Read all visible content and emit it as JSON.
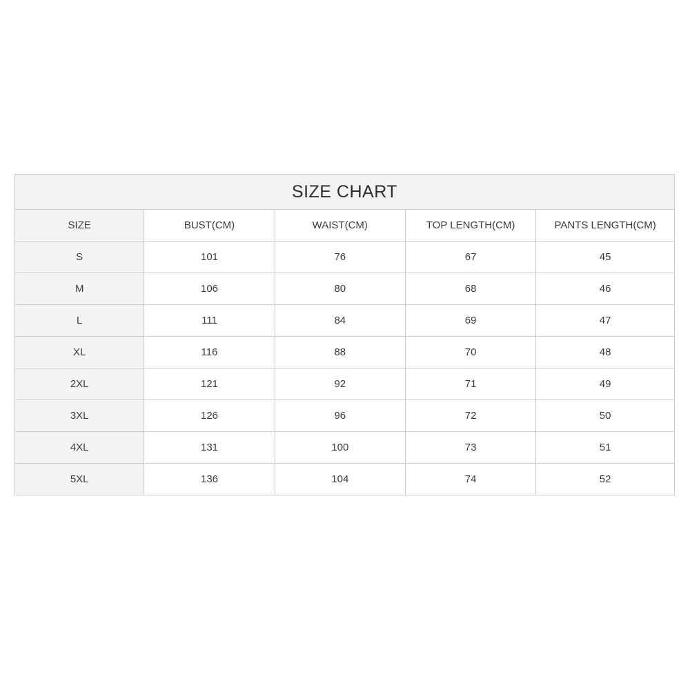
{
  "colors": {
    "page_background": "#ffffff",
    "title_row_background": "#f2f2f4",
    "label_column_background": "#f4f4f6",
    "cell_background": "#ffffff",
    "border": "#cbcbcb",
    "text": "#3a3a3a"
  },
  "chart_data": {
    "type": "table",
    "title": "SIZE CHART",
    "columns": [
      "SIZE",
      "BUST(CM)",
      "WAIST(CM)",
      "TOP LENGTH(CM)",
      "PANTS LENGTH(CM)"
    ],
    "rows": [
      [
        "S",
        "101",
        "76",
        "67",
        "45"
      ],
      [
        "M",
        "106",
        "80",
        "68",
        "46"
      ],
      [
        "L",
        "111",
        "84",
        "69",
        "47"
      ],
      [
        "XL",
        "116",
        "88",
        "70",
        "48"
      ],
      [
        "2XL",
        "121",
        "92",
        "71",
        "49"
      ],
      [
        "3XL",
        "126",
        "96",
        "72",
        "50"
      ],
      [
        "4XL",
        "131",
        "100",
        "73",
        "51"
      ],
      [
        "5XL",
        "136",
        "104",
        "74",
        "52"
      ]
    ]
  }
}
